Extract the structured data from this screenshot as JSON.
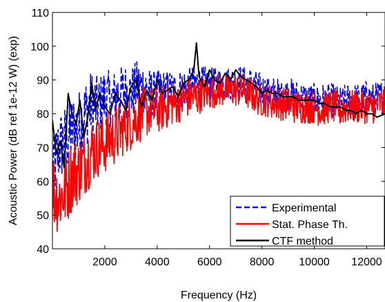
{
  "chart_data": {
    "type": "line",
    "title": "",
    "xlabel": "Frequency (Hz)",
    "ylabel": "Acoustic Power (dB ref 1e-12 W) (exp)",
    "xlim": [
      0,
      12700
    ],
    "ylim": [
      40,
      110
    ],
    "grid": false,
    "legend_position": "bottom-right",
    "x_ticks": [
      {
        "value": 2000,
        "label": "2000"
      },
      {
        "value": 4000,
        "label": "4000"
      },
      {
        "value": 6000,
        "label": "6000"
      },
      {
        "value": 8000,
        "label": "8000"
      },
      {
        "value": 10000,
        "label": "10000"
      },
      {
        "value": 12000,
        "label": "12000"
      }
    ],
    "y_ticks": [
      {
        "value": 40,
        "label": "40"
      },
      {
        "value": 50,
        "label": "50"
      },
      {
        "value": 60,
        "label": "60"
      },
      {
        "value": 70,
        "label": "70"
      },
      {
        "value": 80,
        "label": "80"
      },
      {
        "value": 90,
        "label": "90"
      },
      {
        "value": 100,
        "label": "100"
      },
      {
        "value": 110,
        "label": "110"
      }
    ],
    "series": [
      {
        "name": "Experimental",
        "color": "#0000ff",
        "style": "dashed",
        "x": [
          0,
          250,
          500,
          750,
          1000,
          1250,
          1500,
          1750,
          2000,
          2250,
          2500,
          2750,
          3000,
          3250,
          3500,
          3750,
          4000,
          4250,
          4500,
          4750,
          5000,
          5250,
          5500,
          5750,
          6000,
          6250,
          6500,
          6750,
          7000,
          7250,
          7500,
          7750,
          8000,
          8250,
          8500,
          8750,
          9000,
          9250,
          9500,
          9750,
          10000,
          10250,
          10500,
          10750,
          11000,
          11250,
          11500,
          11750,
          12000,
          12250,
          12500,
          12700
        ],
        "y": [
          62,
          70,
          72,
          75,
          76,
          80,
          83,
          82,
          85,
          84,
          86,
          87,
          86,
          88,
          88,
          86,
          86,
          87,
          87,
          87,
          88,
          88,
          89,
          89,
          89,
          89,
          89,
          89,
          90,
          89,
          89,
          88,
          87,
          86,
          86,
          85,
          86,
          85,
          85,
          84,
          84,
          84,
          84,
          84,
          83,
          84,
          84,
          84,
          85,
          84,
          85,
          85
        ],
        "spread": [
          10,
          11,
          11,
          11,
          11,
          11,
          10,
          9,
          9,
          8,
          8,
          8,
          8,
          8,
          8,
          7,
          7,
          6,
          6,
          6,
          6,
          6,
          6,
          5,
          5,
          5,
          5,
          5,
          5,
          5,
          5,
          5,
          5,
          5,
          5,
          5,
          5,
          5,
          5,
          5,
          5,
          5,
          5,
          5,
          5,
          5,
          5,
          5,
          5,
          5,
          5,
          5
        ]
      },
      {
        "name": "Stat. Phase Th.",
        "color": "#ff0000",
        "style": "solid",
        "x": [
          0,
          250,
          500,
          750,
          1000,
          1250,
          1500,
          1750,
          2000,
          2250,
          2500,
          2750,
          3000,
          3250,
          3500,
          3750,
          4000,
          4250,
          4500,
          4750,
          5000,
          5250,
          5500,
          5750,
          6000,
          6250,
          6500,
          6750,
          7000,
          7250,
          7500,
          7750,
          8000,
          8250,
          8500,
          8750,
          9000,
          9250,
          9500,
          9750,
          10000,
          10250,
          10500,
          10750,
          11000,
          11250,
          11500,
          11750,
          12000,
          12250,
          12500,
          12700
        ],
        "y": [
          58,
          55,
          57,
          62,
          63,
          66,
          69,
          70,
          71,
          73,
          74,
          76,
          77,
          79,
          80,
          81,
          81,
          82,
          83,
          83,
          84,
          85,
          85,
          86,
          86,
          87,
          87,
          87,
          87,
          87,
          86,
          85,
          84,
          84,
          83,
          83,
          83,
          82,
          82,
          82,
          82,
          81,
          82,
          82,
          81,
          82,
          82,
          82,
          82,
          82,
          83,
          83
        ],
        "spread": [
          12,
          11,
          11,
          11,
          10,
          10,
          10,
          9,
          9,
          9,
          9,
          8,
          8,
          8,
          8,
          7,
          7,
          7,
          7,
          6,
          6,
          6,
          6,
          5,
          5,
          5,
          5,
          5,
          5,
          5,
          5,
          5,
          5,
          5,
          5,
          5,
          5,
          5,
          5,
          5,
          5,
          5,
          5,
          5,
          5,
          5,
          5,
          5,
          5,
          5,
          5,
          5
        ]
      },
      {
        "name": "CTF method",
        "color": "#000000",
        "style": "solid",
        "x": [
          0,
          150,
          300,
          450,
          600,
          750,
          900,
          1050,
          1200,
          1350,
          1500,
          1650,
          1800,
          2000,
          2200,
          2400,
          2600,
          2800,
          3000,
          3200,
          3400,
          3600,
          3800,
          4000,
          4200,
          4400,
          4600,
          4800,
          5000,
          5200,
          5400,
          5500,
          5600,
          5800,
          6000,
          6200,
          6400,
          6600,
          6800,
          7000,
          7200,
          7400,
          7600,
          7800,
          8000,
          8200,
          8400,
          8600,
          8800,
          9000,
          9200,
          9400,
          9600,
          9800,
          10000,
          10200,
          10400,
          10600,
          10800,
          11000,
          11200,
          11400,
          11600,
          11800,
          12000,
          12200,
          12400,
          12700
        ],
        "y": [
          78,
          68,
          72,
          64,
          86,
          80,
          77,
          84,
          73,
          79,
          89,
          81,
          86,
          82,
          80,
          86,
          84,
          81,
          88,
          90,
          82,
          87,
          84,
          90,
          86,
          87,
          88,
          85,
          89,
          90,
          93,
          101,
          91,
          88,
          93,
          90,
          89,
          92,
          90,
          93,
          91,
          90,
          89,
          88,
          86,
          87,
          86,
          86,
          85,
          85,
          85,
          84,
          84,
          84,
          84,
          83,
          83,
          82,
          82,
          82,
          81,
          81,
          80,
          81,
          80,
          80,
          79,
          80
        ]
      }
    ]
  }
}
